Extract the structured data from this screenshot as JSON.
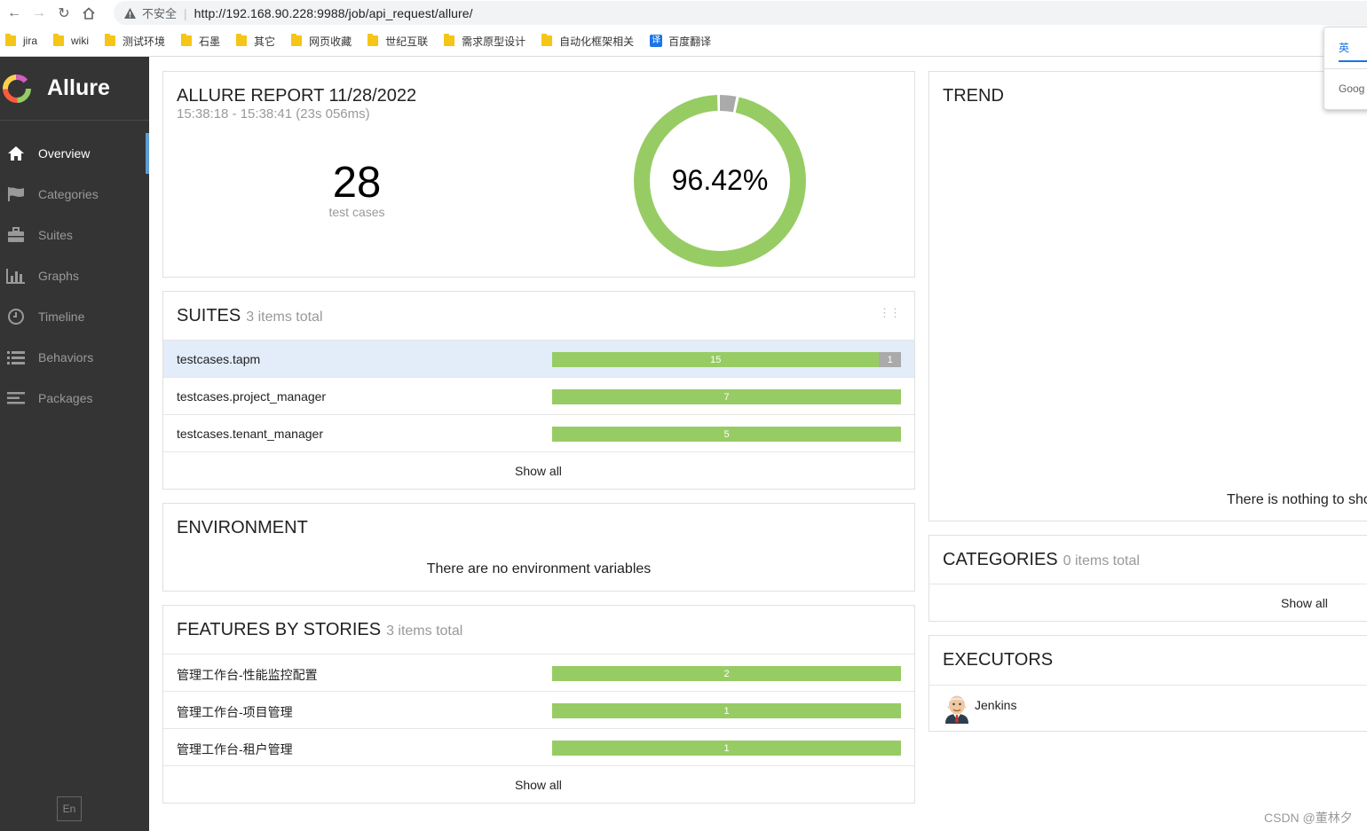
{
  "browser": {
    "insecure_label": "不安全",
    "url": "http://192.168.90.228:9988/job/api_request/allure/",
    "bookmarks": [
      "jira",
      "wiki",
      "测试环境",
      "石墨",
      "其它",
      "网页收藏",
      "世纪互联",
      "需求原型设计",
      "自动化框架相关",
      "百度翻译"
    ],
    "translate_icon_text": "译",
    "translate_popup": {
      "tab": "英",
      "google": "Goog"
    }
  },
  "sidebar": {
    "brand": "Allure",
    "items": [
      {
        "label": "Overview",
        "icon": "home-icon",
        "active": true
      },
      {
        "label": "Categories",
        "icon": "flag-icon",
        "active": false
      },
      {
        "label": "Suites",
        "icon": "briefcase-icon",
        "active": false
      },
      {
        "label": "Graphs",
        "icon": "bar-chart-icon",
        "active": false
      },
      {
        "label": "Timeline",
        "icon": "clock-icon",
        "active": false
      },
      {
        "label": "Behaviors",
        "icon": "list-icon",
        "active": false
      },
      {
        "label": "Packages",
        "icon": "align-left-icon",
        "active": false
      }
    ],
    "language": "En"
  },
  "summary": {
    "title": "ALLURE REPORT 11/28/2022",
    "time_range": "15:38:18 - 15:38:41 (23s 056ms)",
    "test_count": "28",
    "test_count_label": "test cases",
    "success_rate": "96.42%",
    "passed_fraction": 0.9642,
    "colors": {
      "passed": "#97cc64",
      "broken": "#aaaaaa"
    }
  },
  "suites": {
    "title": "SUITES",
    "count": "3 items total",
    "rows": [
      {
        "name": "testcases.tapm",
        "passed": 15,
        "broken": 1,
        "passed_label": "15",
        "broken_label": "1"
      },
      {
        "name": "testcases.project_manager",
        "passed": 7,
        "broken": 0,
        "passed_label": "7",
        "broken_label": ""
      },
      {
        "name": "testcases.tenant_manager",
        "passed": 5,
        "broken": 0,
        "passed_label": "5",
        "broken_label": ""
      }
    ],
    "show_all": "Show all"
  },
  "environment": {
    "title": "ENVIRONMENT",
    "empty": "There are no environment variables"
  },
  "features": {
    "title": "FEATURES BY STORIES",
    "count": "3 items total",
    "rows": [
      {
        "name": "管理工作台-性能监控配置",
        "passed": 2,
        "passed_label": "2"
      },
      {
        "name": "管理工作台-项目管理",
        "passed": 1,
        "passed_label": "1"
      },
      {
        "name": "管理工作台-租户管理",
        "passed": 1,
        "passed_label": "1"
      }
    ],
    "show_all": "Show all"
  },
  "trend": {
    "title": "TREND",
    "empty": "There is nothing to sho"
  },
  "categories": {
    "title": "CATEGORIES",
    "count": "0 items total",
    "show_all": "Show all"
  },
  "executors": {
    "title": "EXECUTORS",
    "name": "Jenkins"
  },
  "watermark": "CSDN @董林夕"
}
